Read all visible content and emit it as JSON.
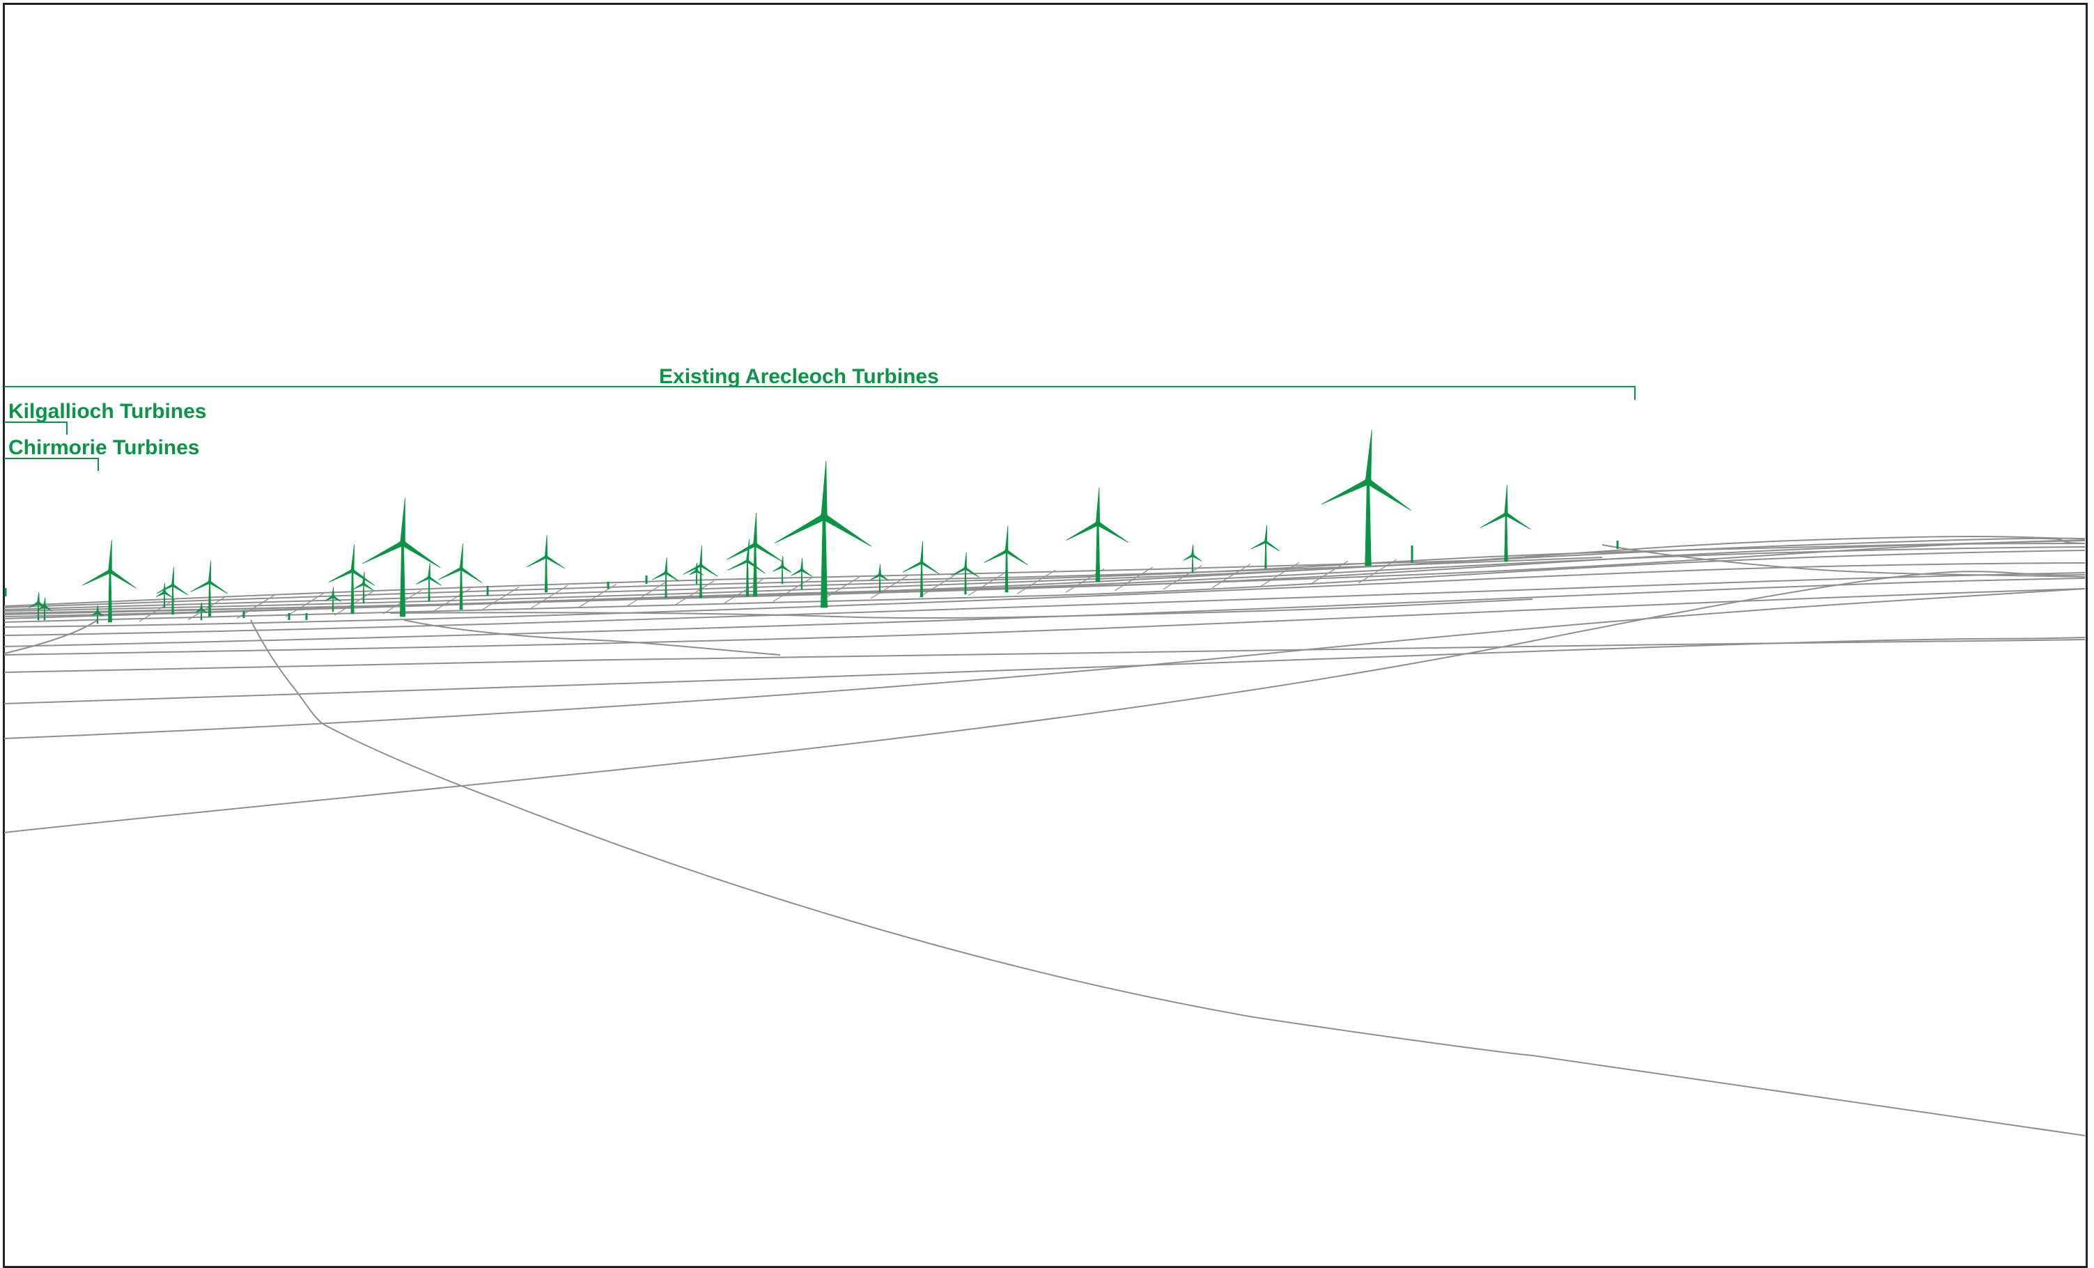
{
  "colors": {
    "turbine": "#0a9445",
    "terrain": "#8e8e8e",
    "frame": "#222222",
    "background": "#ffffff"
  },
  "labels": {
    "arecleoch": "Existing Arecleoch Turbines",
    "kilgallioch": "Kilgallioch Turbines",
    "chirmorie": "Chirmorie Turbines"
  }
}
